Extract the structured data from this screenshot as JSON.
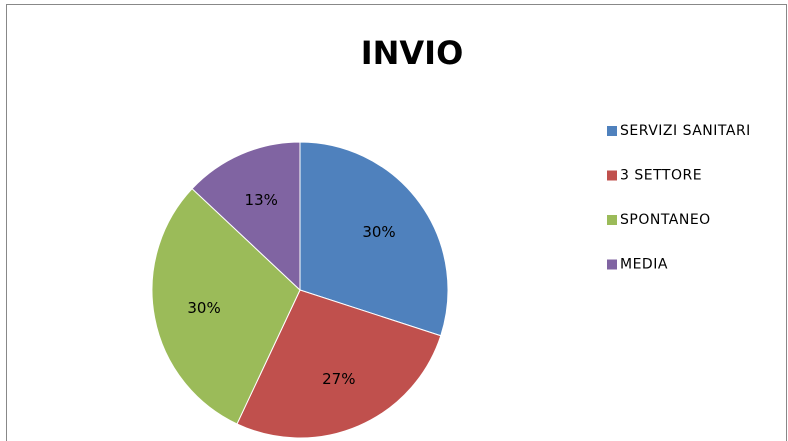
{
  "chart_data": {
    "type": "pie",
    "title": "INVIO",
    "categories": [
      "SERVIZI SANITARI",
      "3 SETTORE",
      "SPONTANEO",
      "MEDIA"
    ],
    "values": [
      30,
      27,
      30,
      13
    ],
    "value_labels": [
      "30%",
      "27%",
      "30%",
      "13%"
    ],
    "colors": [
      "#4f81bd",
      "#c0504d",
      "#9bbb59",
      "#8064a2"
    ],
    "legend": "right"
  }
}
